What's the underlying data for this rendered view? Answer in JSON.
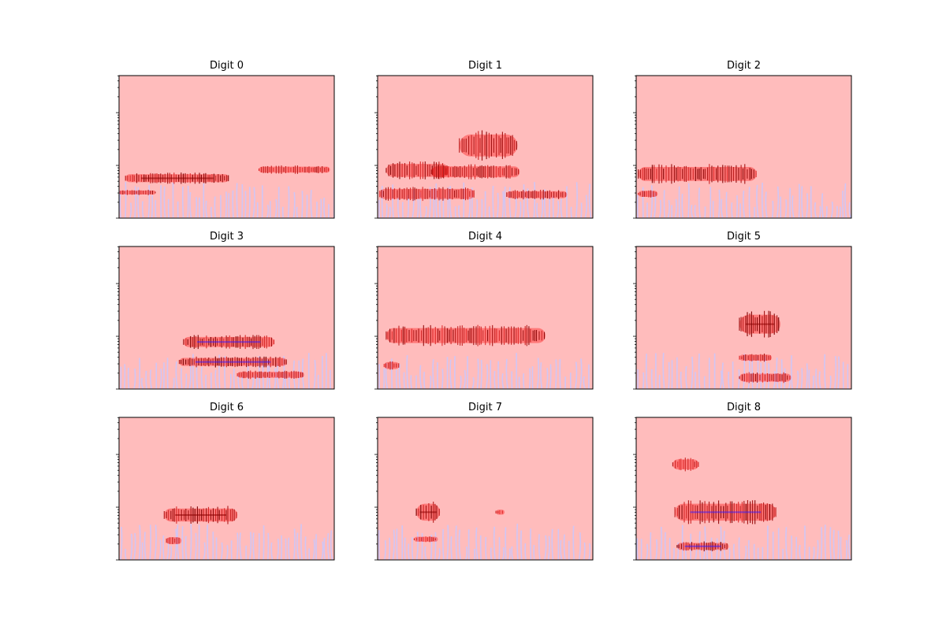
{
  "figure": {
    "background": "#ffffff",
    "field_color": "#ffbcbc",
    "accent_red": "#ff0000",
    "accent_darkred": "#8b0000",
    "accent_blue": "#c8c8ff",
    "accent_deepblue": "#3a1aff"
  },
  "chart_data": [
    {
      "type": "heatmap",
      "title": "Digit 0",
      "y_scale": "log",
      "x_ticks": false,
      "blobs": [
        {
          "x": [
            0.03,
            0.51
          ],
          "y": [
            0.24,
            0.32
          ],
          "intensity": 0.85
        },
        {
          "x": [
            0.65,
            0.98
          ],
          "y": [
            0.31,
            0.37
          ],
          "intensity": 0.55
        },
        {
          "x": [
            0.0,
            0.17
          ],
          "y": [
            0.16,
            0.2
          ],
          "intensity": 0.6
        }
      ]
    },
    {
      "type": "heatmap",
      "title": "Digit 1",
      "y_scale": "log",
      "x_ticks": false,
      "blobs": [
        {
          "x": [
            0.04,
            0.33
          ],
          "y": [
            0.27,
            0.4
          ],
          "intensity": 0.8
        },
        {
          "x": [
            0.25,
            0.66
          ],
          "y": [
            0.27,
            0.38
          ],
          "intensity": 0.7
        },
        {
          "x": [
            0.38,
            0.65
          ],
          "y": [
            0.4,
            0.62
          ],
          "intensity": 0.75
        },
        {
          "x": [
            0.01,
            0.45
          ],
          "y": [
            0.12,
            0.22
          ],
          "intensity": 0.6
        },
        {
          "x": [
            0.6,
            0.88
          ],
          "y": [
            0.13,
            0.2
          ],
          "intensity": 0.65
        }
      ]
    },
    {
      "type": "heatmap",
      "title": "Digit 2",
      "y_scale": "log",
      "x_ticks": false,
      "blobs": [
        {
          "x": [
            0.01,
            0.56
          ],
          "y": [
            0.24,
            0.38
          ],
          "intensity": 0.8
        },
        {
          "x": [
            0.01,
            0.1
          ],
          "y": [
            0.14,
            0.2
          ],
          "intensity": 0.45
        }
      ]
    },
    {
      "type": "heatmap",
      "title": "Digit 3",
      "y_scale": "log",
      "x_ticks": false,
      "blobs": [
        {
          "x": [
            0.3,
            0.72
          ],
          "y": [
            0.28,
            0.38
          ],
          "intensity": 0.85
        },
        {
          "x": [
            0.28,
            0.78
          ],
          "y": [
            0.15,
            0.23
          ],
          "intensity": 0.95
        },
        {
          "x": [
            0.55,
            0.86
          ],
          "y": [
            0.07,
            0.13
          ],
          "intensity": 0.5
        }
      ]
    },
    {
      "type": "heatmap",
      "title": "Digit 4",
      "y_scale": "log",
      "x_ticks": false,
      "blobs": [
        {
          "x": [
            0.04,
            0.78
          ],
          "y": [
            0.3,
            0.45
          ],
          "intensity": 0.7
        },
        {
          "x": [
            0.03,
            0.1
          ],
          "y": [
            0.13,
            0.2
          ],
          "intensity": 0.4
        }
      ]
    },
    {
      "type": "heatmap",
      "title": "Digit 5",
      "y_scale": "log",
      "x_ticks": false,
      "blobs": [
        {
          "x": [
            0.48,
            0.67
          ],
          "y": [
            0.36,
            0.55
          ],
          "intensity": 0.85
        },
        {
          "x": [
            0.48,
            0.63
          ],
          "y": [
            0.19,
            0.25
          ],
          "intensity": 0.55
        },
        {
          "x": [
            0.48,
            0.72
          ],
          "y": [
            0.04,
            0.12
          ],
          "intensity": 0.6
        }
      ]
    },
    {
      "type": "heatmap",
      "title": "Digit 6",
      "y_scale": "log",
      "x_ticks": false,
      "blobs": [
        {
          "x": [
            0.21,
            0.55
          ],
          "y": [
            0.25,
            0.38
          ],
          "intensity": 0.85
        },
        {
          "x": [
            0.22,
            0.29
          ],
          "y": [
            0.1,
            0.17
          ],
          "intensity": 0.45
        }
      ]
    },
    {
      "type": "heatmap",
      "title": "Digit 7",
      "y_scale": "log",
      "x_ticks": false,
      "blobs": [
        {
          "x": [
            0.18,
            0.29
          ],
          "y": [
            0.25,
            0.42
          ],
          "intensity": 0.9
        },
        {
          "x": [
            0.55,
            0.59
          ],
          "y": [
            0.31,
            0.36
          ],
          "intensity": 0.4
        },
        {
          "x": [
            0.17,
            0.28
          ],
          "y": [
            0.12,
            0.17
          ],
          "intensity": 0.45
        }
      ]
    },
    {
      "type": "heatmap",
      "title": "Digit 8",
      "y_scale": "log",
      "x_ticks": false,
      "blobs": [
        {
          "x": [
            0.18,
            0.65
          ],
          "y": [
            0.25,
            0.42
          ],
          "intensity": 0.85
        },
        {
          "x": [
            0.17,
            0.29
          ],
          "y": [
            0.62,
            0.72
          ],
          "intensity": 0.45
        },
        {
          "x": [
            0.19,
            0.43
          ],
          "y": [
            0.06,
            0.13
          ],
          "intensity": 0.85
        }
      ]
    }
  ]
}
